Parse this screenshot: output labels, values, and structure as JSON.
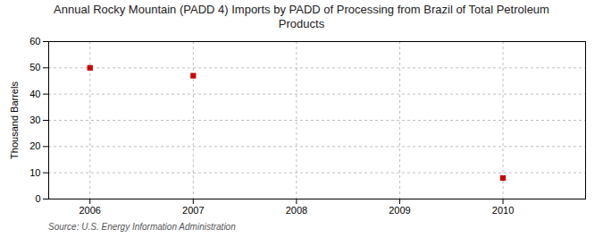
{
  "chart_data": {
    "type": "scatter",
    "title": "Annual Rocky Mountain (PADD 4) Imports by PADD of Processing from Brazil of Total Petroleum\nProducts",
    "ylabel": "Thousand Barrels",
    "source": "Source: U.S. Energy Information Administration",
    "x": [
      2006,
      2007,
      2010
    ],
    "values": [
      50,
      47,
      8
    ],
    "color": "#cc0000",
    "marker": "square",
    "xlim": [
      2005.6,
      2010.8
    ],
    "xticks": [
      2006,
      2007,
      2008,
      2009,
      2010
    ],
    "ylim": [
      0,
      60
    ],
    "yticks": [
      0,
      10,
      20,
      30,
      40,
      50,
      60
    ],
    "grid": true
  }
}
